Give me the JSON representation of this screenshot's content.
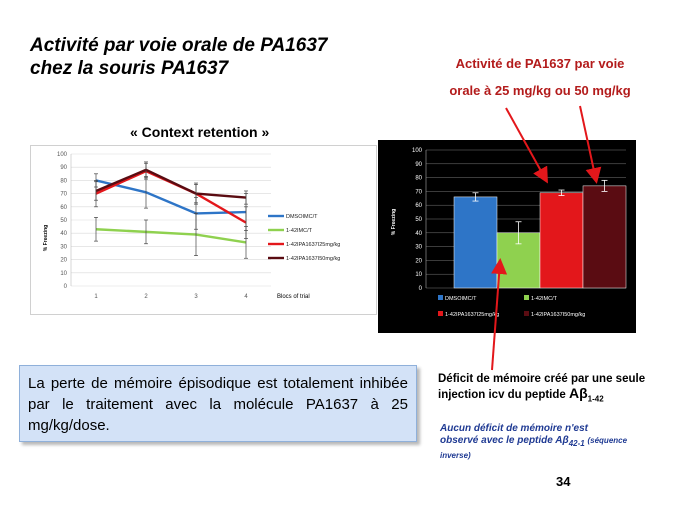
{
  "slide": {
    "title_line1": "Activité par voie orale de PA1637",
    "title_line2": "chez la souris PA1637",
    "callout_top_line1": "Activité de PA1637 par voie",
    "callout_top_line2": "orale à 25 mg/kg ou 50 mg/kg",
    "context_label": "« Context retention »",
    "summary_text": "La perte de mémoire épisodique est totalement inhibée par le traitement avec la molécule PA1637 à 25 mg/kg/dose.",
    "deficit_line1": "Déficit de mémoire créé par une seule",
    "deficit_line2_prefix": "injection icv du peptide ",
    "deficit_peptide": "Aβ",
    "deficit_sub": "1-42",
    "noloss_line1": "Aucun déficit de mémoire n'est",
    "noloss_line2_prefix": "observé avec le peptide ",
    "noloss_peptide": "Aβ",
    "noloss_sub": "42-1",
    "noloss_note": "(séquence",
    "noloss_note2": "inverse)",
    "page_number": "34"
  },
  "colors": {
    "title_red": "#b31b1b",
    "summary_box": "#d3e2f7",
    "dmso": "#2e75c7",
    "ab142": "#8fd14f",
    "pa25": "#e3171b",
    "pa50": "#5a0c12"
  },
  "chart_data": [
    {
      "type": "line",
      "title": "« Context retention »",
      "xlabel": "Blocs of trial",
      "ylabel": "% Freezing",
      "ylim": [
        0,
        100
      ],
      "x": [
        1,
        2,
        3,
        4
      ],
      "x_tick_labels": [
        "1",
        "2",
        "3",
        "4"
      ],
      "y_ticks": [
        0,
        10,
        20,
        30,
        40,
        50,
        60,
        70,
        80,
        90,
        100
      ],
      "legend_position": "right",
      "series": [
        {
          "name": "DMSOIMC/T",
          "values": [
            80,
            71,
            55,
            56
          ],
          "errors": [
            5,
            12,
            12,
            14
          ],
          "color": "#2e75c7"
        },
        {
          "name": "1-42IMC/T",
          "values": [
            43,
            41,
            39,
            33
          ],
          "errors": [
            9,
            9,
            16,
            12
          ],
          "color": "#8fd14f"
        },
        {
          "name": "1-42IPA1637I25mg/kg",
          "values": [
            70,
            87,
            70,
            48
          ],
          "errors": [
            10,
            6,
            7,
            12
          ],
          "color": "#e3171b"
        },
        {
          "name": "1-42IPA1637I50mg/kg",
          "values": [
            72,
            88,
            70,
            67
          ],
          "errors": [
            7,
            6,
            8,
            5
          ],
          "color": "#5a0c12"
        }
      ]
    },
    {
      "type": "bar",
      "ylabel": "% Freezing",
      "ylim": [
        0,
        100
      ],
      "y_ticks": [
        0,
        10,
        20,
        30,
        40,
        50,
        60,
        70,
        80,
        90,
        100
      ],
      "legend_position": "bottom",
      "categories": [
        "DMSOIMC/T",
        "1-42IMC/T",
        "1-42IPA1637I25mg/kg",
        "1-42IPA1637I50mg/kg"
      ],
      "values": [
        66,
        40,
        69,
        74
      ],
      "errors": [
        3,
        8,
        2,
        4
      ],
      "colors": [
        "#2e75c7",
        "#8fd14f",
        "#e3171b",
        "#5a0c12"
      ]
    }
  ]
}
